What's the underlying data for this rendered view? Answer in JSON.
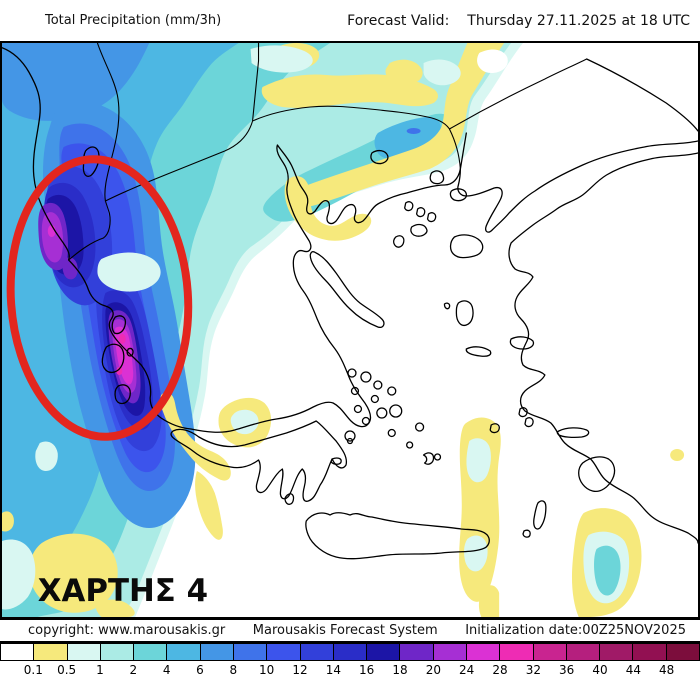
{
  "header": {
    "left_title": "Total Precipitation (mm/3h)",
    "right_label": "Forecast Valid:",
    "right_value": "Thursday 27.11.2025 at 18 UTC"
  },
  "map": {
    "annotation": "ΧΑΡΤΗΣ 4",
    "ellipse_color": "#E3261E",
    "coast_color": "#000000",
    "sea_no_precip_color": "#FFFFFF"
  },
  "footer": {
    "copyright": "copyright: www.marousakis.gr",
    "system": "Marousakis Forecast System",
    "init_date": "Initialization date:00Z25NOV2025"
  },
  "colorbar": {
    "unit": "mm/3h",
    "labels": [
      "0.1",
      "0.5",
      "1",
      "2",
      "4",
      "6",
      "8",
      "10",
      "12",
      "14",
      "16",
      "18",
      "20",
      "24",
      "28",
      "32",
      "36",
      "40",
      "44",
      "48"
    ],
    "colors": [
      "#FFFFFF",
      "#F6E97C",
      "#D9F7F2",
      "#ABEBE5",
      "#6CD5D9",
      "#4DB7E3",
      "#4496E6",
      "#3F73EA",
      "#3C54EC",
      "#3240DA",
      "#2A2DC8",
      "#1C15A6",
      "#6F26C8",
      "#A62FD4",
      "#DB31D4",
      "#EE2CB4",
      "#C92490",
      "#B51F7E",
      "#A01A67",
      "#921052",
      "#7C0D3C"
    ]
  }
}
